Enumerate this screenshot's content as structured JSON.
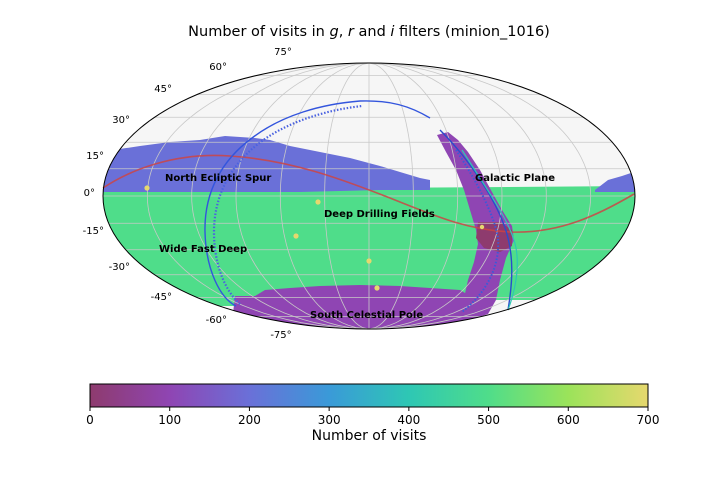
{
  "chart_data": {
    "type": "heatmap",
    "projection": "mollweide",
    "title_parts": [
      {
        "text": "Number of visits in ",
        "style": "normal"
      },
      {
        "text": "g",
        "style": "italic"
      },
      {
        "text": ", ",
        "style": "normal"
      },
      {
        "text": "r",
        "style": "italic"
      },
      {
        "text": " and ",
        "style": "normal"
      },
      {
        "text": "i",
        "style": "italic"
      },
      {
        "text": " filters (minion_1016)",
        "style": "normal"
      }
    ],
    "lat_tick_labels": [
      "75°",
      "60°",
      "45°",
      "30°",
      "15°",
      "0°",
      "-15°",
      "-30°",
      "-45°",
      "-60°",
      "-75°"
    ],
    "lat_ticks": [
      75,
      60,
      45,
      30,
      15,
      0,
      -15,
      -30,
      -45,
      -60,
      -75
    ],
    "grid": true,
    "colormap": {
      "label": "Number of visits",
      "range": [
        0,
        700
      ],
      "ticks": [
        0,
        100,
        200,
        300,
        400,
        500,
        600,
        700
      ],
      "tick_labels": [
        "0",
        "100",
        "200",
        "300",
        "400",
        "500",
        "600",
        "700"
      ],
      "stops": [
        "#8e3b6e",
        "#8f45b3",
        "#6a70d8",
        "#3a9ad8",
        "#2ec7b4",
        "#4fdd8a",
        "#9be35a",
        "#e6d86e"
      ]
    },
    "regions": [
      {
        "name": "North Ecliptic Spur",
        "approx_visits": 230
      },
      {
        "name": "Galactic Plane",
        "approx_visits": 150
      },
      {
        "name": "Deep Drilling Fields",
        "approx_visits": 700
      },
      {
        "name": "Wide Fast Deep",
        "approx_visits": 470
      },
      {
        "name": "South Celestial Pole",
        "approx_visits": 130
      }
    ],
    "curves": [
      {
        "name": "ecliptic",
        "color": "#cc4444"
      },
      {
        "name": "galactic plane boundary",
        "color": "#3355dd"
      }
    ],
    "deep_drilling_points": 6
  }
}
